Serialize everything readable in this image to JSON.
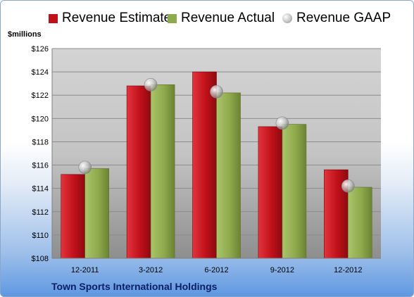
{
  "legend": {
    "estimate": "Revenue Estimate",
    "actual": "Revenue Actual",
    "gaap": "Revenue GAAP"
  },
  "unit_label": "$millions",
  "company": "Town Sports International Holdings",
  "colors": {
    "estimate": "#c0111a",
    "actual": "#8faa4c",
    "gaap": "#bbbbbb"
  },
  "chart_data": {
    "type": "bar",
    "categories": [
      "12-2011",
      "3-2012",
      "6-2012",
      "9-2012",
      "12-2012"
    ],
    "series": [
      {
        "name": "Revenue Estimate",
        "values": [
          115.2,
          122.8,
          124.0,
          119.3,
          115.6
        ]
      },
      {
        "name": "Revenue Actual",
        "values": [
          115.7,
          122.9,
          122.2,
          119.5,
          114.1
        ]
      },
      {
        "name": "Revenue GAAP",
        "values": [
          115.8,
          122.9,
          122.3,
          119.6,
          114.2
        ]
      }
    ],
    "ylabel": "$millions",
    "ylim": [
      108,
      126
    ],
    "yticks": [
      "$108",
      "$110",
      "$112",
      "$114",
      "$116",
      "$118",
      "$120",
      "$122",
      "$124",
      "$126"
    ],
    "grid": true,
    "legend_position": "top"
  }
}
